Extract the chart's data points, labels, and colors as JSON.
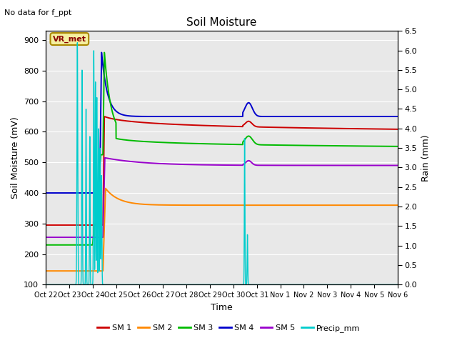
{
  "title": "Soil Moisture",
  "subtitle": "No data for f_ppt",
  "ylabel_left": "Soil Moisture (mV)",
  "ylabel_right": "Rain (mm)",
  "xlabel": "Time",
  "ylim_left": [
    100,
    930
  ],
  "ylim_right": [
    0.0,
    6.5
  ],
  "yticks_left": [
    100,
    200,
    300,
    400,
    500,
    600,
    700,
    800,
    900
  ],
  "yticks_right": [
    0.0,
    0.5,
    1.0,
    1.5,
    2.0,
    2.5,
    3.0,
    3.5,
    4.0,
    4.5,
    5.0,
    5.5,
    6.0,
    6.5
  ],
  "bg_color": "#e8e8e8",
  "fig_color": "#ffffff",
  "line_colors": {
    "SM1": "#cc0000",
    "SM2": "#ff8800",
    "SM3": "#00bb00",
    "SM4": "#0000cc",
    "SM5": "#9900cc",
    "Precip": "#00cccc"
  },
  "tick_labels": [
    "Oct 22",
    "Oct 23",
    "Oct 24",
    "Oct 25",
    "Oct 26",
    "Oct 27",
    "Oct 28",
    "Oct 29",
    "Oct 30",
    "Oct 31",
    "Nov 1",
    "Nov 2",
    "Nov 3",
    "Nov 4",
    "Nov 5",
    "Nov 6"
  ],
  "vr_met_label": "VR_met",
  "legend_labels": [
    "SM 1",
    "SM 2",
    "SM 3",
    "SM 4",
    "SM 5",
    "Precip_mm"
  ]
}
